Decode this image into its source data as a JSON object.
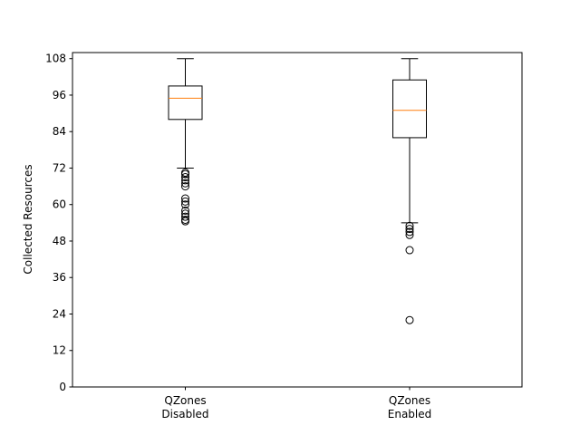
{
  "chart_data": {
    "type": "boxplot",
    "title": "",
    "xlabel": "",
    "ylabel": "Collected Resources",
    "ylim": [
      0,
      110
    ],
    "yticks": [
      0,
      12,
      24,
      36,
      48,
      60,
      72,
      84,
      96,
      108
    ],
    "grid": false,
    "categories": [
      [
        "QZones",
        "Disabled"
      ],
      [
        "QZones",
        "Enabled"
      ]
    ],
    "boxes": [
      {
        "whisker_low": 72,
        "q1": 88,
        "median": 95,
        "q3": 99,
        "whisker_high": 108,
        "outliers": [
          70.5,
          70,
          69,
          68,
          67,
          66,
          62,
          61,
          60,
          58,
          57,
          56,
          55,
          54.5
        ]
      },
      {
        "whisker_low": 54,
        "q1": 82,
        "median": 91,
        "q3": 101,
        "whisker_high": 108,
        "outliers": [
          53,
          52,
          51,
          50,
          45,
          22
        ]
      }
    ],
    "colors": {
      "box": "#000000",
      "median": "#ff7f0e",
      "outlier": "#000000"
    }
  }
}
